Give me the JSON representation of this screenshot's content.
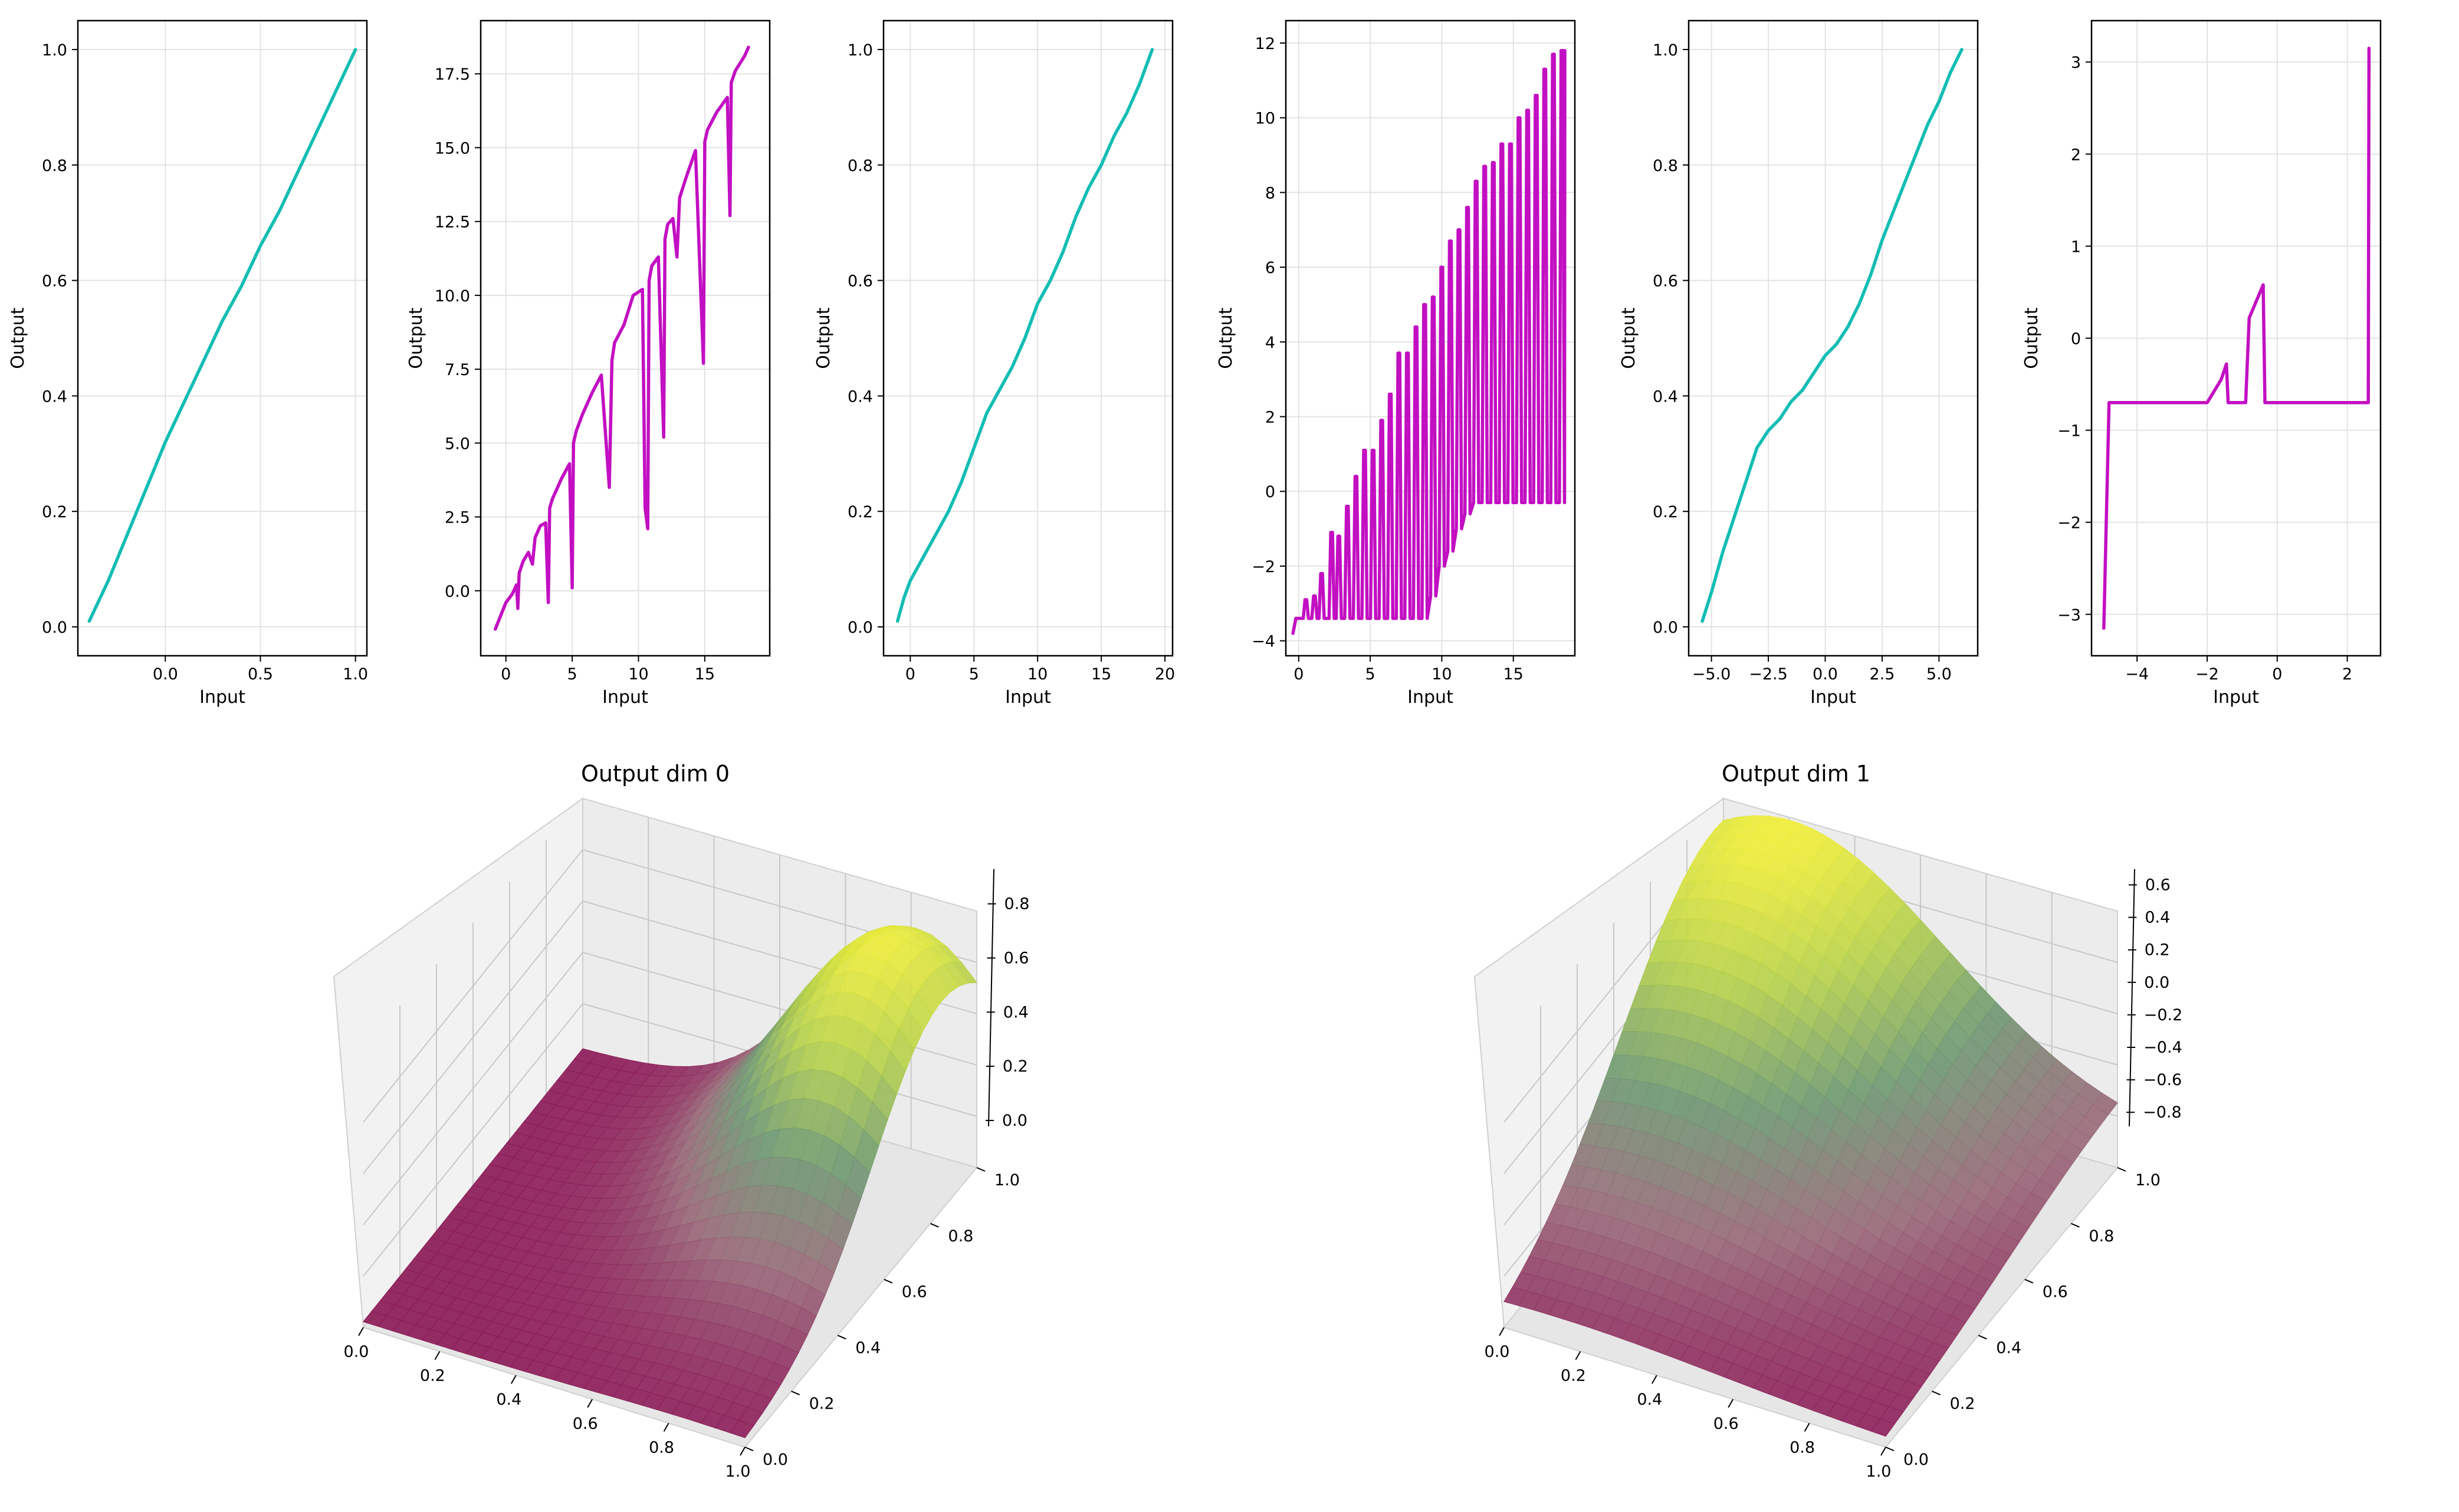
{
  "chart_data": [
    {
      "type": "line",
      "xlabel": "Input",
      "ylabel": "Output",
      "xlim": [
        -0.46,
        1.06
      ],
      "ylim": [
        -0.05,
        1.05
      ],
      "xticks": [
        0.0,
        0.5,
        1.0
      ],
      "xtick_labels": [
        "0.0",
        "0.5",
        "1.0"
      ],
      "yticks": [
        0.0,
        0.2,
        0.4,
        0.6,
        0.8,
        1.0
      ],
      "ytick_labels": [
        "0.0",
        "0.2",
        "0.4",
        "0.6",
        "0.8",
        "1.0"
      ],
      "grid": true,
      "color": "#12bdb4",
      "series": [
        {
          "name": "s1",
          "x": [
            -0.4,
            -0.3,
            -0.2,
            -0.1,
            0.0,
            0.1,
            0.2,
            0.3,
            0.4,
            0.5,
            0.6,
            0.7,
            0.8,
            0.9,
            1.0
          ],
          "y": [
            0.01,
            0.08,
            0.16,
            0.24,
            0.32,
            0.39,
            0.46,
            0.53,
            0.59,
            0.66,
            0.72,
            0.79,
            0.86,
            0.93,
            1.0
          ]
        }
      ]
    },
    {
      "type": "line",
      "xlabel": "Input",
      "ylabel": "Output",
      "xlim": [
        -1.9,
        19.9
      ],
      "ylim": [
        -2.2,
        19.3
      ],
      "xticks": [
        0,
        5,
        10,
        15
      ],
      "xtick_labels": [
        "0",
        "5",
        "10",
        "15"
      ],
      "yticks": [
        0.0,
        2.5,
        5.0,
        7.5,
        10.0,
        12.5,
        15.0,
        17.5
      ],
      "ytick_labels": [
        "0.0",
        "2.5",
        "5.0",
        "7.5",
        "10.0",
        "12.5",
        "15.0",
        "17.5"
      ],
      "grid": true,
      "color": "#c20fc2",
      "series": [
        {
          "name": "s2",
          "x": [
            -0.8,
            0.0,
            0.5,
            0.8,
            0.9,
            1.0,
            1.3,
            1.7,
            2.0,
            2.2,
            2.6,
            3.0,
            3.2,
            3.3,
            3.5,
            4.2,
            4.8,
            5.0,
            5.1,
            5.3,
            5.8,
            6.5,
            7.2,
            7.8,
            8.0,
            8.2,
            8.9,
            9.6,
            10.3,
            10.5,
            10.7,
            10.8,
            11.0,
            11.5,
            11.9,
            12.0,
            12.2,
            12.6,
            12.9,
            13.1,
            13.6,
            14.3,
            14.9,
            15.0,
            15.2,
            15.9,
            16.7,
            16.9,
            17.0,
            17.3,
            18.0,
            18.3
          ],
          "y": [
            -1.3,
            -0.4,
            -0.1,
            0.2,
            -0.6,
            0.6,
            1.0,
            1.3,
            0.9,
            1.8,
            2.2,
            2.3,
            -0.4,
            2.8,
            3.1,
            3.8,
            4.3,
            0.1,
            5.0,
            5.4,
            6.0,
            6.7,
            7.3,
            3.5,
            7.8,
            8.4,
            9.0,
            10.0,
            10.2,
            2.8,
            2.1,
            10.5,
            11.0,
            11.3,
            5.2,
            11.9,
            12.4,
            12.6,
            11.3,
            13.3,
            14.0,
            14.9,
            7.7,
            15.2,
            15.6,
            16.2,
            16.7,
            12.7,
            17.2,
            17.6,
            18.1,
            18.4
          ]
        }
      ]
    },
    {
      "type": "line",
      "xlabel": "Input",
      "ylabel": "Output",
      "xlim": [
        -2.1,
        20.6
      ],
      "ylim": [
        -0.05,
        1.05
      ],
      "xticks": [
        0,
        5,
        10,
        15,
        20
      ],
      "xtick_labels": [
        "0",
        "5",
        "10",
        "15",
        "20"
      ],
      "yticks": [
        0.0,
        0.2,
        0.4,
        0.6,
        0.8,
        1.0
      ],
      "ytick_labels": [
        "0.0",
        "0.2",
        "0.4",
        "0.6",
        "0.8",
        "1.0"
      ],
      "grid": true,
      "color": "#12bdb4",
      "series": [
        {
          "name": "s3",
          "x": [
            -1.0,
            -0.5,
            0.0,
            1.0,
            2.0,
            3.0,
            4.0,
            5.0,
            6.0,
            7.0,
            8.0,
            9.0,
            10.0,
            11.0,
            12.0,
            13.0,
            14.0,
            15.0,
            16.0,
            17.0,
            18.0,
            19.0
          ],
          "y": [
            0.01,
            0.05,
            0.08,
            0.12,
            0.16,
            0.2,
            0.25,
            0.31,
            0.37,
            0.41,
            0.45,
            0.5,
            0.56,
            0.6,
            0.65,
            0.71,
            0.76,
            0.8,
            0.85,
            0.89,
            0.94,
            1.0
          ]
        }
      ]
    },
    {
      "type": "line",
      "xlabel": "Input",
      "ylabel": "Output",
      "xlim": [
        -0.9,
        19.3
      ],
      "ylim": [
        -4.4,
        12.6
      ],
      "xticks": [
        0,
        5,
        10,
        15
      ],
      "xtick_labels": [
        "0",
        "5",
        "10",
        "15"
      ],
      "yticks": [
        -4,
        -2,
        0,
        2,
        4,
        6,
        8,
        10,
        12
      ],
      "ytick_labels": [
        "−4",
        "−2",
        "0",
        "2",
        "4",
        "6",
        "8",
        "10",
        "12"
      ],
      "grid": true,
      "color": "#c20fc2",
      "spikes": {
        "base": -3.4,
        "start_x": -0.4,
        "start_y": -3.8,
        "end_x": 18.6,
        "end_y": 11.8,
        "centers": [
          0.5,
          1.1,
          1.6,
          2.3,
          2.8,
          3.4,
          4.0,
          4.6,
          5.2,
          5.8,
          6.4,
          7.0,
          7.6,
          8.2,
          8.8,
          9.4,
          10.0,
          10.6,
          11.2,
          11.8,
          12.4,
          13.0,
          13.6,
          14.2,
          14.8,
          15.4,
          16.0,
          16.6,
          17.2,
          17.8,
          18.4
        ],
        "peaks": [
          -2.9,
          -2.8,
          -2.2,
          -1.1,
          -1.2,
          -0.4,
          0.4,
          1.1,
          1.1,
          1.9,
          2.6,
          3.7,
          3.7,
          4.4,
          5.0,
          5.2,
          6.0,
          6.7,
          7.0,
          7.6,
          8.3,
          8.7,
          8.8,
          9.3,
          9.3,
          10.0,
          10.2,
          10.6,
          11.3,
          11.7,
          11.8
        ],
        "troughs_after": 15,
        "trough_tail": [
          -2.8,
          -2.0,
          -1.6,
          -1.0,
          -0.6,
          -0.3
        ]
      }
    },
    {
      "type": "line",
      "xlabel": "Input",
      "ylabel": "Output",
      "xlim": [
        -6.0,
        6.7
      ],
      "ylim": [
        -0.05,
        1.05
      ],
      "xticks": [
        -5.0,
        -2.5,
        0.0,
        2.5,
        5.0
      ],
      "xtick_labels": [
        "−5.0",
        "−2.5",
        "0.0",
        "2.5",
        "5.0"
      ],
      "yticks": [
        0.0,
        0.2,
        0.4,
        0.6,
        0.8,
        1.0
      ],
      "ytick_labels": [
        "0.0",
        "0.2",
        "0.4",
        "0.6",
        "0.8",
        "1.0"
      ],
      "grid": true,
      "color": "#12bdb4",
      "series": [
        {
          "name": "s5",
          "x": [
            -5.4,
            -5.0,
            -4.5,
            -4.0,
            -3.5,
            -3.0,
            -2.5,
            -2.0,
            -1.5,
            -1.0,
            -0.5,
            0.0,
            0.5,
            1.0,
            1.5,
            2.0,
            2.5,
            3.0,
            3.5,
            4.0,
            4.5,
            5.0,
            5.5,
            6.0
          ],
          "y": [
            0.01,
            0.06,
            0.13,
            0.19,
            0.25,
            0.31,
            0.34,
            0.36,
            0.39,
            0.41,
            0.44,
            0.47,
            0.49,
            0.52,
            0.56,
            0.61,
            0.67,
            0.72,
            0.77,
            0.82,
            0.87,
            0.91,
            0.96,
            1.0
          ]
        }
      ]
    },
    {
      "type": "line",
      "xlabel": "Input",
      "ylabel": "Output",
      "xlim": [
        -5.3,
        2.95
      ],
      "ylim": [
        -3.45,
        3.45
      ],
      "xticks": [
        -4,
        -2,
        0,
        2
      ],
      "xtick_labels": [
        "−4",
        "−2",
        "0",
        "2"
      ],
      "yticks": [
        -3,
        -2,
        -1,
        0,
        1,
        2,
        3
      ],
      "ytick_labels": [
        "−3",
        "−2",
        "−1",
        "0",
        "1",
        "2",
        "3"
      ],
      "grid": true,
      "color": "#c20fc2",
      "series": [
        {
          "name": "s6",
          "x": [
            -4.95,
            -4.8,
            -2.0,
            -1.6,
            -1.45,
            -1.4,
            -1.2,
            -1.0,
            -0.9,
            -0.8,
            -0.6,
            -0.4,
            -0.35,
            2.6,
            2.62
          ],
          "y": [
            -3.15,
            -0.7,
            -0.7,
            -0.45,
            -0.28,
            -0.7,
            -0.7,
            -0.7,
            -0.7,
            0.22,
            0.4,
            0.58,
            -0.7,
            -0.7,
            3.15
          ]
        }
      ]
    },
    {
      "type": "surface",
      "title": "Output dim 0",
      "xticks": [
        "0.0",
        "0.2",
        "0.4",
        "0.6",
        "0.8",
        "1.0"
      ],
      "yticks": [
        "0.0",
        "0.2",
        "0.4",
        "0.6",
        "0.8",
        "1.0"
      ],
      "zticks": [
        "0.0",
        "0.2",
        "0.4",
        "0.6",
        "0.8"
      ],
      "zlim": [
        0.0,
        0.9
      ],
      "colormap": [
        "#8c1456",
        "#9a6b7a",
        "#6f9a74",
        "#b4d04e",
        "#f2ef3a"
      ]
    },
    {
      "type": "surface",
      "title": "Output dim 1",
      "xticks": [
        "0.0",
        "0.2",
        "0.4",
        "0.6",
        "0.8",
        "1.0"
      ],
      "yticks": [
        "0.0",
        "0.2",
        "0.4",
        "0.6",
        "0.8",
        "1.0"
      ],
      "zticks": [
        "−0.8",
        "−0.6",
        "−0.4",
        "−0.2",
        "0.0",
        "0.2",
        "0.4",
        "0.6"
      ],
      "zlim": [
        -0.85,
        0.65
      ],
      "colormap": [
        "#8c1456",
        "#9a6b7a",
        "#6f9a74",
        "#b4d04e",
        "#f2ef3a"
      ]
    }
  ]
}
